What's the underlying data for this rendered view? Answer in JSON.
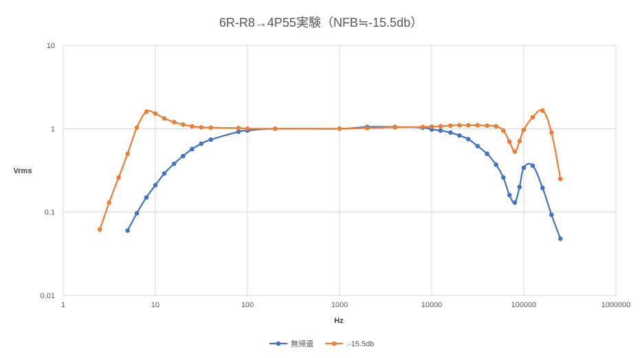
{
  "chart_data": {
    "type": "scatter",
    "title": "6R-R8→4P55実験（NFB≒-15.5db）",
    "xlabel": "Hz",
    "ylabel": "Vrms",
    "xscale": "log",
    "yscale": "log",
    "xlim": [
      1,
      1000000
    ],
    "ylim": [
      0.01,
      10
    ],
    "x_ticks": [
      1,
      10,
      100,
      1000,
      10000,
      100000,
      1000000
    ],
    "x_tick_labels": [
      "1",
      "10",
      "100",
      "1000",
      "10000",
      "100000",
      "1000000"
    ],
    "y_ticks": [
      0.01,
      0.1,
      1,
      10
    ],
    "y_tick_labels": [
      "0.01",
      "0.1",
      "1",
      "10"
    ],
    "grid": true,
    "legend_position": "bottom",
    "series": [
      {
        "name": "無帰還",
        "color": "#4472C4",
        "x": [
          5,
          6.3,
          8,
          10,
          12.5,
          16,
          20,
          25,
          31.5,
          40,
          80,
          100,
          200,
          1000,
          2000,
          4000,
          8000,
          10000,
          12500,
          16000,
          20000,
          25000,
          31500,
          40000,
          50000,
          60000,
          70000,
          80000,
          90000,
          100000,
          125000,
          160000,
          200000,
          250000
        ],
        "y": [
          0.06,
          0.097,
          0.15,
          0.21,
          0.29,
          0.38,
          0.47,
          0.57,
          0.66,
          0.74,
          0.92,
          0.95,
          1.0,
          1.0,
          1.05,
          1.05,
          1.03,
          0.98,
          0.95,
          0.9,
          0.83,
          0.75,
          0.62,
          0.5,
          0.37,
          0.26,
          0.16,
          0.13,
          0.2,
          0.34,
          0.36,
          0.195,
          0.093,
          0.048
        ]
      },
      {
        "name": ".-15.5db",
        "color": "#ED7D31",
        "x": [
          2.5,
          3.15,
          4,
          5,
          6.3,
          8,
          10,
          12.5,
          16,
          20,
          25,
          31.5,
          40,
          80,
          100,
          200,
          1000,
          2000,
          4000,
          8000,
          10000,
          12500,
          16000,
          20000,
          25000,
          31500,
          40000,
          50000,
          60000,
          70000,
          80000,
          90000,
          100000,
          125000,
          160000,
          200000,
          250000
        ],
        "y": [
          0.062,
          0.13,
          0.26,
          0.5,
          1.03,
          1.6,
          1.52,
          1.33,
          1.2,
          1.12,
          1.07,
          1.04,
          1.03,
          1.02,
          1.0,
          1.0,
          1.0,
          1.02,
          1.04,
          1.05,
          1.06,
          1.07,
          1.09,
          1.1,
          1.1,
          1.1,
          1.09,
          1.07,
          0.95,
          0.7,
          0.53,
          0.71,
          0.97,
          1.37,
          1.65,
          0.9,
          0.25
        ]
      }
    ]
  }
}
